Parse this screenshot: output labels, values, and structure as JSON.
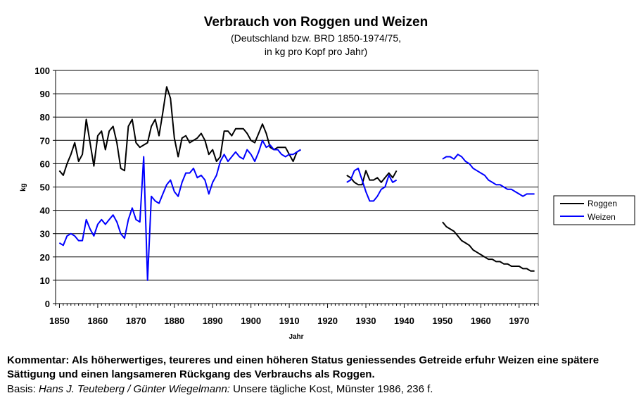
{
  "chart_data": {
    "type": "line",
    "title": "Verbrauch von Roggen und Weizen",
    "subtitle_line1": "(Deutschland bzw. BRD 1850-1974/75,",
    "subtitle_line2": "in kg pro Kopf pro Jahr)",
    "xlabel": "Jahr",
    "ylabel": "kg",
    "xlim": [
      1849,
      1975
    ],
    "ylim": [
      0,
      100
    ],
    "x_ticks": [
      1850,
      1860,
      1870,
      1880,
      1890,
      1900,
      1910,
      1920,
      1930,
      1940,
      1950,
      1960,
      1970
    ],
    "y_ticks": [
      0,
      10,
      20,
      30,
      40,
      50,
      60,
      70,
      80,
      90,
      100
    ],
    "grid": "horizontal",
    "legend_position": "right",
    "series": [
      {
        "name": "Roggen",
        "color": "#000000",
        "segments": [
          [
            [
              1850,
              57
            ],
            [
              1851,
              55
            ],
            [
              1852,
              60
            ],
            [
              1853,
              64
            ],
            [
              1854,
              69
            ],
            [
              1855,
              61
            ],
            [
              1856,
              64
            ],
            [
              1857,
              79
            ],
            [
              1858,
              69
            ],
            [
              1859,
              59
            ],
            [
              1860,
              72
            ],
            [
              1861,
              74
            ],
            [
              1862,
              66
            ],
            [
              1863,
              74
            ],
            [
              1864,
              76
            ],
            [
              1865,
              69
            ],
            [
              1866,
              58
            ],
            [
              1867,
              57
            ],
            [
              1868,
              76
            ],
            [
              1869,
              79
            ],
            [
              1870,
              69
            ],
            [
              1871,
              67
            ],
            [
              1872,
              68
            ],
            [
              1873,
              69
            ],
            [
              1874,
              76
            ],
            [
              1875,
              79
            ],
            [
              1876,
              72
            ],
            [
              1877,
              82
            ],
            [
              1878,
              93
            ],
            [
              1879,
              88
            ],
            [
              1880,
              71
            ],
            [
              1881,
              63
            ],
            [
              1882,
              71
            ],
            [
              1883,
              72
            ],
            [
              1884,
              69
            ],
            [
              1885,
              70
            ],
            [
              1886,
              71
            ],
            [
              1887,
              73
            ],
            [
              1888,
              70
            ],
            [
              1889,
              64
            ],
            [
              1890,
              66
            ],
            [
              1891,
              61
            ],
            [
              1892,
              63
            ],
            [
              1893,
              74
            ],
            [
              1894,
              74
            ],
            [
              1895,
              72
            ],
            [
              1896,
              75
            ],
            [
              1897,
              75
            ],
            [
              1898,
              75
            ],
            [
              1899,
              73
            ],
            [
              1900,
              70
            ],
            [
              1901,
              69
            ],
            [
              1902,
              73
            ],
            [
              1903,
              77
            ],
            [
              1904,
              73
            ],
            [
              1905,
              67
            ],
            [
              1906,
              66
            ],
            [
              1907,
              67
            ],
            [
              1908,
              67
            ],
            [
              1909,
              67
            ],
            [
              1910,
              64
            ],
            [
              1911,
              61
            ],
            [
              1912,
              65
            ],
            [
              1913,
              66
            ]
          ],
          [
            [
              1925,
              55
            ],
            [
              1926,
              54
            ],
            [
              1927,
              52
            ],
            [
              1928,
              51
            ],
            [
              1929,
              51
            ],
            [
              1930,
              57
            ],
            [
              1931,
              53
            ],
            [
              1932,
              53
            ],
            [
              1933,
              54
            ],
            [
              1934,
              52
            ],
            [
              1935,
              54
            ],
            [
              1936,
              56
            ],
            [
              1937,
              54
            ],
            [
              1938,
              57
            ]
          ],
          [
            [
              1950,
              35
            ],
            [
              1951,
              33
            ],
            [
              1952,
              32
            ],
            [
              1953,
              31
            ],
            [
              1954,
              29
            ],
            [
              1955,
              27
            ],
            [
              1956,
              26
            ],
            [
              1957,
              25
            ],
            [
              1958,
              23
            ],
            [
              1959,
              22
            ],
            [
              1960,
              21
            ],
            [
              1961,
              20
            ],
            [
              1962,
              19
            ],
            [
              1963,
              19
            ],
            [
              1964,
              18
            ],
            [
              1965,
              18
            ],
            [
              1966,
              17
            ],
            [
              1967,
              17
            ],
            [
              1968,
              16
            ],
            [
              1969,
              16
            ],
            [
              1970,
              16
            ],
            [
              1971,
              15
            ],
            [
              1972,
              15
            ],
            [
              1973,
              14
            ],
            [
              1974,
              14
            ]
          ]
        ]
      },
      {
        "name": "Weizen",
        "color": "#0000ff",
        "segments": [
          [
            [
              1850,
              26
            ],
            [
              1851,
              25
            ],
            [
              1852,
              29
            ],
            [
              1853,
              30
            ],
            [
              1854,
              29
            ],
            [
              1855,
              27
            ],
            [
              1856,
              27
            ],
            [
              1857,
              36
            ],
            [
              1858,
              32
            ],
            [
              1859,
              29
            ],
            [
              1860,
              34
            ],
            [
              1861,
              36
            ],
            [
              1862,
              34
            ],
            [
              1863,
              36
            ],
            [
              1864,
              38
            ],
            [
              1865,
              35
            ],
            [
              1866,
              30
            ],
            [
              1867,
              28
            ],
            [
              1868,
              36
            ],
            [
              1869,
              41
            ],
            [
              1870,
              36
            ],
            [
              1871,
              35
            ],
            [
              1872,
              63
            ],
            [
              1873,
              10
            ],
            [
              1874,
              46
            ],
            [
              1875,
              44
            ],
            [
              1876,
              43
            ],
            [
              1877,
              47
            ],
            [
              1878,
              51
            ],
            [
              1879,
              53
            ],
            [
              1880,
              48
            ],
            [
              1881,
              46
            ],
            [
              1882,
              52
            ],
            [
              1883,
              56
            ],
            [
              1884,
              56
            ],
            [
              1885,
              58
            ],
            [
              1886,
              54
            ],
            [
              1887,
              55
            ],
            [
              1888,
              53
            ],
            [
              1889,
              47
            ],
            [
              1890,
              52
            ],
            [
              1891,
              55
            ],
            [
              1892,
              61
            ],
            [
              1893,
              64
            ],
            [
              1894,
              61
            ],
            [
              1895,
              63
            ],
            [
              1896,
              65
            ],
            [
              1897,
              63
            ],
            [
              1898,
              62
            ],
            [
              1899,
              66
            ],
            [
              1900,
              64
            ],
            [
              1901,
              61
            ],
            [
              1902,
              65
            ],
            [
              1903,
              70
            ],
            [
              1904,
              67
            ],
            [
              1905,
              68
            ],
            [
              1906,
              66
            ],
            [
              1907,
              66
            ],
            [
              1908,
              64
            ],
            [
              1909,
              63
            ],
            [
              1910,
              64
            ],
            [
              1911,
              64
            ],
            [
              1912,
              65
            ],
            [
              1913,
              66
            ]
          ],
          [
            [
              1925,
              52
            ],
            [
              1926,
              53
            ],
            [
              1927,
              57
            ],
            [
              1928,
              58
            ],
            [
              1929,
              53
            ],
            [
              1930,
              48
            ],
            [
              1931,
              44
            ],
            [
              1932,
              44
            ],
            [
              1933,
              46
            ],
            [
              1934,
              49
            ],
            [
              1935,
              50
            ],
            [
              1936,
              55
            ],
            [
              1937,
              52
            ],
            [
              1938,
              53
            ]
          ],
          [
            [
              1950,
              62
            ],
            [
              1951,
              63
            ],
            [
              1952,
              63
            ],
            [
              1953,
              62
            ],
            [
              1954,
              64
            ],
            [
              1955,
              63
            ],
            [
              1956,
              61
            ],
            [
              1957,
              60
            ],
            [
              1958,
              58
            ],
            [
              1959,
              57
            ],
            [
              1960,
              56
            ],
            [
              1961,
              55
            ],
            [
              1962,
              53
            ],
            [
              1963,
              52
            ],
            [
              1964,
              51
            ],
            [
              1965,
              51
            ],
            [
              1966,
              50
            ],
            [
              1967,
              49
            ],
            [
              1968,
              49
            ],
            [
              1969,
              48
            ],
            [
              1970,
              47
            ],
            [
              1971,
              46
            ],
            [
              1972,
              47
            ],
            [
              1973,
              47
            ],
            [
              1974,
              47
            ]
          ]
        ]
      }
    ]
  },
  "comment_text": "Kommentar: Als höherwertiges, teureres und einen höheren Status geniessendes Getreide erfuhr Weizen eine spätere Sättigung und einen langsameren Rückgang des Verbrauchs als Roggen.",
  "basis_prefix": "Basis: ",
  "basis_authors": "Hans J. Teuteberg / Günter Wiegelmann:",
  "basis_rest": "  Unsere tägliche Kost, Münster 1986, 236 f."
}
